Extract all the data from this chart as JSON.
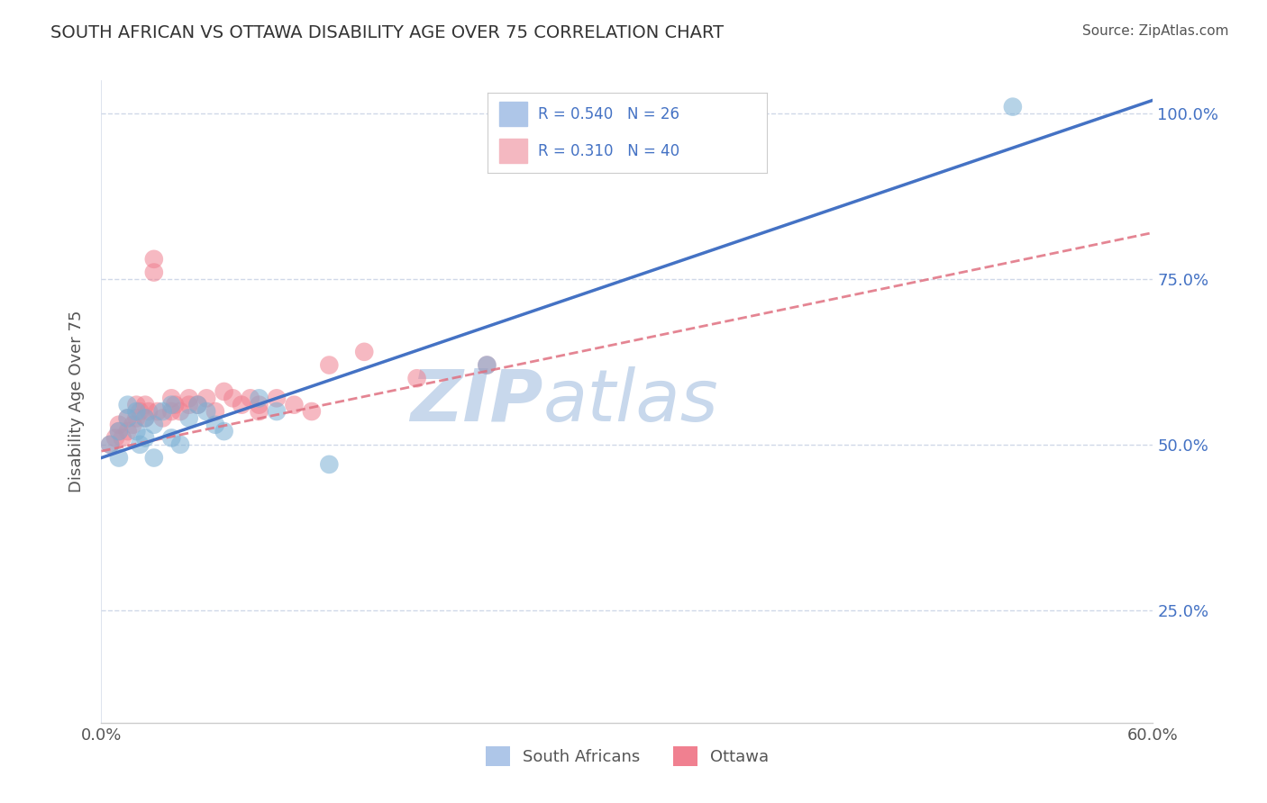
{
  "title": "SOUTH AFRICAN VS OTTAWA DISABILITY AGE OVER 75 CORRELATION CHART",
  "source": "Source: ZipAtlas.com",
  "ylabel": "Disability Age Over 75",
  "xlim": [
    0.0,
    0.6
  ],
  "ylim": [
    0.08,
    1.05
  ],
  "legend_items": [
    {
      "color": "#aec6e8",
      "R": "0.540",
      "N": "26",
      "label": "South Africans"
    },
    {
      "color": "#f4b8c1",
      "R": "0.310",
      "N": "40",
      "label": "Ottawa"
    }
  ],
  "south_african_x": [
    0.005,
    0.01,
    0.01,
    0.015,
    0.015,
    0.02,
    0.02,
    0.022,
    0.025,
    0.025,
    0.03,
    0.03,
    0.035,
    0.04,
    0.04,
    0.045,
    0.05,
    0.055,
    0.06,
    0.065,
    0.07,
    0.09,
    0.1,
    0.13,
    0.22,
    0.52
  ],
  "south_african_y": [
    0.5,
    0.52,
    0.48,
    0.56,
    0.54,
    0.55,
    0.52,
    0.5,
    0.54,
    0.51,
    0.53,
    0.48,
    0.55,
    0.56,
    0.51,
    0.5,
    0.54,
    0.56,
    0.55,
    0.53,
    0.52,
    0.57,
    0.55,
    0.47,
    0.62,
    1.01
  ],
  "ottawa_x": [
    0.005,
    0.008,
    0.01,
    0.01,
    0.012,
    0.015,
    0.015,
    0.018,
    0.02,
    0.02,
    0.022,
    0.025,
    0.025,
    0.027,
    0.03,
    0.03,
    0.032,
    0.035,
    0.04,
    0.04,
    0.042,
    0.045,
    0.05,
    0.05,
    0.055,
    0.06,
    0.065,
    0.07,
    0.075,
    0.08,
    0.085,
    0.09,
    0.09,
    0.1,
    0.11,
    0.12,
    0.13,
    0.15,
    0.18,
    0.22
  ],
  "ottawa_y": [
    0.5,
    0.51,
    0.53,
    0.52,
    0.51,
    0.54,
    0.52,
    0.53,
    0.56,
    0.54,
    0.55,
    0.56,
    0.54,
    0.55,
    0.78,
    0.76,
    0.55,
    0.54,
    0.57,
    0.55,
    0.56,
    0.55,
    0.57,
    0.56,
    0.56,
    0.57,
    0.55,
    0.58,
    0.57,
    0.56,
    0.57,
    0.55,
    0.56,
    0.57,
    0.56,
    0.55,
    0.62,
    0.64,
    0.6,
    0.62
  ],
  "sa_dot_color": "#7aafd4",
  "ottawa_dot_color": "#f08090",
  "sa_line_color": "#4472c4",
  "ottawa_line_color": "#e07080",
  "background_color": "#ffffff",
  "grid_color": "#d0d8e8",
  "title_color": "#333333",
  "axis_label_color": "#555555",
  "tick_color": "#555555",
  "source_color": "#555555",
  "watermark_color": "#c8d8ec",
  "watermark_zip": "ZIP",
  "watermark_atlas": "atlas",
  "legend_text_color": "#4472c4",
  "sa_line_endpoints": [
    0.0,
    0.6,
    0.48,
    1.02
  ],
  "ottawa_line_endpoints": [
    0.0,
    0.6,
    0.49,
    0.82
  ]
}
